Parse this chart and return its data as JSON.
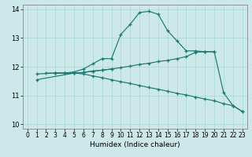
{
  "xlabel": "Humidex (Indice chaleur)",
  "background_color": "#cce8e8",
  "line_color": "#1a7a6e",
  "xlim": [
    -0.5,
    23.5
  ],
  "ylim": [
    9.85,
    14.15
  ],
  "yticks": [
    10,
    11,
    12,
    13,
    14
  ],
  "xticks": [
    0,
    1,
    2,
    3,
    4,
    5,
    6,
    7,
    8,
    9,
    10,
    11,
    12,
    13,
    14,
    15,
    16,
    17,
    18,
    19,
    20,
    21,
    22,
    23
  ],
  "lines": [
    {
      "x": [
        2,
        3,
        4,
        5,
        6,
        7,
        8,
        9,
        10,
        11,
        12,
        13,
        14,
        15,
        16,
        17,
        18,
        19,
        20,
        21,
        22,
        23
      ],
      "y": [
        11.78,
        11.78,
        11.78,
        11.82,
        11.92,
        12.1,
        12.28,
        12.28,
        13.12,
        13.47,
        13.88,
        13.92,
        13.82,
        13.25,
        12.9,
        12.55,
        12.55,
        12.52,
        12.52,
        11.1,
        10.65,
        10.45
      ]
    },
    {
      "x": [
        1,
        3,
        4,
        5,
        6,
        7,
        8,
        9,
        10,
        11,
        12,
        13,
        14,
        15,
        16,
        17,
        18,
        19,
        20
      ],
      "y": [
        11.75,
        11.78,
        11.78,
        11.78,
        11.8,
        11.85,
        11.88,
        11.92,
        11.97,
        12.02,
        12.08,
        12.12,
        12.18,
        12.22,
        12.28,
        12.35,
        12.5,
        12.52,
        12.52
      ]
    },
    {
      "x": [
        3,
        4,
        5,
        6,
        7,
        8,
        9,
        10,
        11,
        12,
        13,
        14,
        15,
        16,
        17,
        18,
        19,
        20,
        21,
        22,
        23
      ],
      "y": [
        11.78,
        11.78,
        11.78,
        11.75,
        11.68,
        11.62,
        11.55,
        11.48,
        11.42,
        11.35,
        11.28,
        11.22,
        11.15,
        11.08,
        11.02,
        10.95,
        10.88,
        10.82,
        10.72,
        10.65,
        10.45
      ]
    },
    {
      "x": [
        1,
        5,
        6,
        7,
        8,
        9
      ],
      "y": [
        11.55,
        11.78,
        11.8,
        11.85,
        11.88,
        11.92
      ]
    }
  ]
}
